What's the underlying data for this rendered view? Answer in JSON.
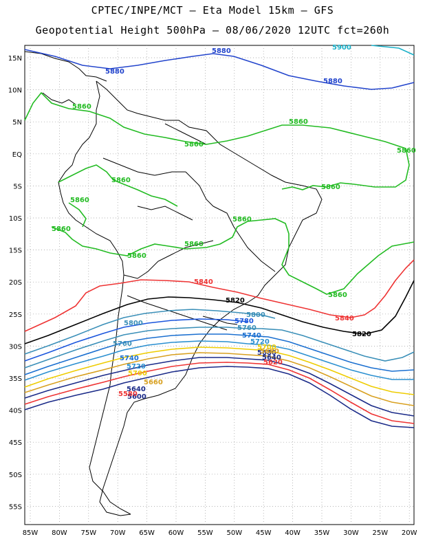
{
  "title_line1": "CPTEC/INPE/MCT –  Eta Model 15km – GFS",
  "title_line2": "Geopotential Height 500hPa – 08/06/2020 12UTC fct=260h",
  "lat_labels": [
    "15N",
    "10N",
    "5N",
    "EQ",
    "5S",
    "10S",
    "15S",
    "20S",
    "25S",
    "30S",
    "35S",
    "40S",
    "45S",
    "50S",
    "55S"
  ],
  "lon_labels": [
    "85W",
    "80W",
    "75W",
    "70W",
    "65W",
    "60W",
    "55W",
    "50W",
    "45W",
    "40W",
    "35W",
    "30W",
    "25W",
    "20W"
  ],
  "contour_labels": [
    {
      "id": "c5900",
      "text": "5900",
      "color": "#1ab0c8"
    },
    {
      "id": "c5880a",
      "text": "5880",
      "color": "#2244cc"
    },
    {
      "id": "c5880b",
      "text": "5880",
      "color": "#2244cc"
    },
    {
      "id": "c5880c",
      "text": "5880",
      "color": "#2244cc"
    },
    {
      "id": "c5860a",
      "text": "5860",
      "color": "#22bb22"
    },
    {
      "id": "c5860b",
      "text": "5860",
      "color": "#22bb22"
    },
    {
      "id": "c5860c",
      "text": "5860",
      "color": "#22bb22"
    },
    {
      "id": "c5860d",
      "text": "5860",
      "color": "#22bb22"
    },
    {
      "id": "c5860e",
      "text": "5860",
      "color": "#22bb22"
    },
    {
      "id": "c5860f",
      "text": "5860",
      "color": "#22bb22"
    },
    {
      "id": "c5860g",
      "text": "5860",
      "color": "#22bb22"
    },
    {
      "id": "c5860h",
      "text": "5860",
      "color": "#22bb22"
    },
    {
      "id": "c5860i",
      "text": "5860",
      "color": "#22bb22"
    },
    {
      "id": "c5860j",
      "text": "5860",
      "color": "#22bb22"
    },
    {
      "id": "c5860k",
      "text": "5860",
      "color": "#22bb22"
    },
    {
      "id": "c5860l",
      "text": "5860",
      "color": "#22bb22"
    },
    {
      "id": "c5840a",
      "text": "5840",
      "color": "#ee3333"
    },
    {
      "id": "c5840b",
      "text": "5840",
      "color": "#ee3333"
    },
    {
      "id": "c5820a",
      "text": "5820",
      "color": "#000000"
    },
    {
      "id": "c5820b",
      "text": "5820",
      "color": "#000000"
    },
    {
      "id": "c5800a",
      "text": "5800",
      "color": "#3a8fb8"
    },
    {
      "id": "c5800b",
      "text": "5800",
      "color": "#3a8fb8"
    },
    {
      "id": "c5780",
      "text": "5780",
      "color": "#1a55dd"
    },
    {
      "id": "c5760a",
      "text": "5760",
      "color": "#3a8fb8"
    },
    {
      "id": "c5760b",
      "text": "5760",
      "color": "#3a8fb8"
    },
    {
      "id": "c5740a",
      "text": "5740",
      "color": "#1a6fd0"
    },
    {
      "id": "c5740b",
      "text": "5740",
      "color": "#1a6fd0"
    },
    {
      "id": "c5720a",
      "text": "5720",
      "color": "#2a8fd0"
    },
    {
      "id": "c5720b",
      "text": "5720",
      "color": "#2a8fd0"
    },
    {
      "id": "c5700a",
      "text": "5700",
      "color": "#eecc00"
    },
    {
      "id": "c5700b",
      "text": "5700",
      "color": "#eecc00"
    },
    {
      "id": "c5680a",
      "text": "5680",
      "color": "#1a2a88"
    },
    {
      "id": "c5680b",
      "text": "5680",
      "color": "#d8a020"
    },
    {
      "id": "c5660",
      "text": "5660",
      "color": "#d8a020"
    },
    {
      "id": "c5640a",
      "text": "5640",
      "color": "#1a2a88"
    },
    {
      "id": "c5640b",
      "text": "5640",
      "color": "#1a2a88"
    },
    {
      "id": "c5620",
      "text": "5620",
      "color": "#ee3333"
    },
    {
      "id": "c5600",
      "text": "5600",
      "color": "#1a2a88"
    },
    {
      "id": "c5580",
      "text": "5580",
      "color": "#ee3333"
    }
  ]
}
